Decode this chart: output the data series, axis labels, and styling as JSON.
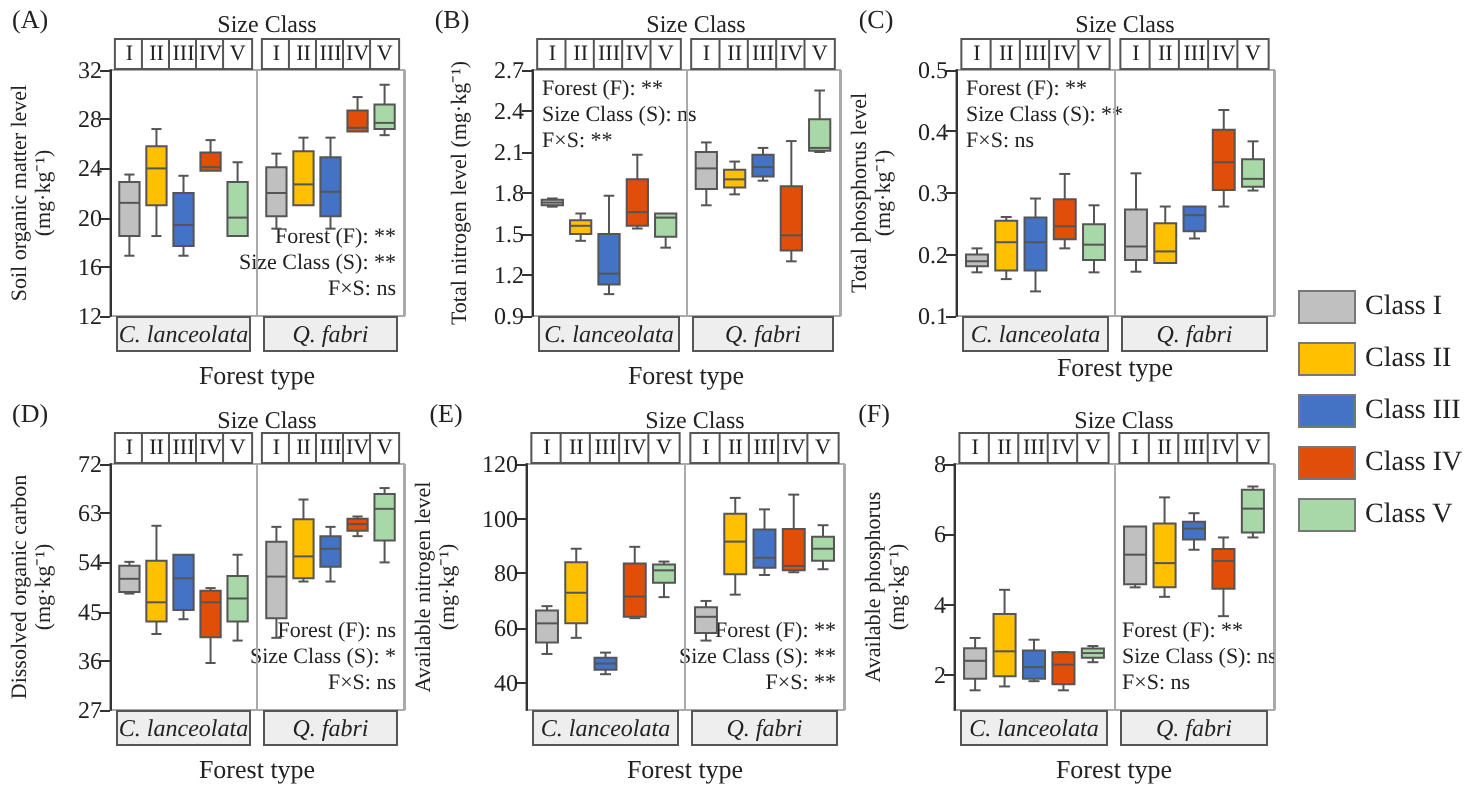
{
  "chart_data": [
    {
      "type": "box",
      "title": "Size Class",
      "xlabel": "Forest type",
      "ylabel": "Soil organic matter level\n(mg·kg⁻¹)",
      "categories": [
        "C. lanceolata",
        "Q. fabri"
      ],
      "ylim": [
        12,
        32
      ],
      "yticks": [
        12,
        16,
        20,
        24,
        28,
        32
      ],
      "annotations": [
        "(A)",
        "I",
        "II",
        "III",
        "IV",
        "V",
        "I",
        "II",
        "III",
        "IV",
        "V",
        "Forest (F): **",
        "Size Class (S): **",
        "F×S: ns"
      ],
      "series": [
        {
          "color": "#c0c0c0",
          "boxes": [
            {
              "low": 16.9,
              "q1": 18.5,
              "median": 21.2,
              "q3": 22.9,
              "high": 23.5
            },
            {
              "low": 19.1,
              "q1": 20.1,
              "median": 22.0,
              "q3": 24.1,
              "high": 25.2
            }
          ]
        },
        {
          "color": "#ffc000",
          "boxes": [
            {
              "low": 18.5,
              "q1": 21.0,
              "median": 24.0,
              "q3": 25.8,
              "high": 27.2
            },
            {
              "low": 21.0,
              "q1": 21.0,
              "median": 22.7,
              "q3": 25.4,
              "high": 26.5
            }
          ]
        },
        {
          "color": "#4472c4",
          "boxes": [
            {
              "low": 16.9,
              "q1": 17.7,
              "median": 19.4,
              "q3": 22.0,
              "high": 23.4
            },
            {
              "low": 19.1,
              "q1": 20.1,
              "median": 22.1,
              "q3": 24.9,
              "high": 26.5
            }
          ]
        },
        {
          "color": "#e04e0a",
          "boxes": [
            {
              "low": 23.8,
              "q1": 23.8,
              "median": 24.1,
              "q3": 25.3,
              "high": 26.3
            },
            {
              "low": 27.0,
              "q1": 27.0,
              "median": 27.3,
              "q3": 28.7,
              "high": 29.8
            }
          ]
        },
        {
          "color": "#a9d8a8",
          "boxes": [
            {
              "low": 18.5,
              "q1": 18.5,
              "median": 20.0,
              "q3": 22.9,
              "high": 24.5
            },
            {
              "low": 26.7,
              "q1": 27.2,
              "median": 27.7,
              "q3": 29.2,
              "high": 30.8
            }
          ]
        }
      ]
    },
    {
      "type": "box",
      "title": "Size Class",
      "xlabel": "Forest type",
      "ylabel": "Total nitrogen level (mg·kg⁻¹)",
      "categories": [
        "C. lanceolata",
        "Q. fabri"
      ],
      "ylim": [
        0.9,
        2.7
      ],
      "yticks": [
        0.9,
        1.2,
        1.5,
        1.8,
        2.1,
        2.4,
        2.7
      ],
      "annotations": [
        "(B)",
        "I",
        "II",
        "III",
        "IV",
        "V",
        "I",
        "II",
        "III",
        "IV",
        "V",
        "Forest (F): **",
        "Size Class (S): ns",
        "F×S: **"
      ],
      "series": [
        {
          "color": "#c0c0c0",
          "boxes": [
            {
              "low": 1.7,
              "q1": 1.71,
              "median": 1.73,
              "q3": 1.75,
              "high": 1.76
            },
            {
              "low": 1.71,
              "q1": 1.83,
              "median": 1.98,
              "q3": 2.1,
              "high": 2.17
            }
          ]
        },
        {
          "color": "#ffc000",
          "boxes": [
            {
              "low": 1.45,
              "q1": 1.5,
              "median": 1.56,
              "q3": 1.6,
              "high": 1.65
            },
            {
              "low": 1.79,
              "q1": 1.84,
              "median": 1.9,
              "q3": 1.97,
              "high": 2.03
            }
          ]
        },
        {
          "color": "#4472c4",
          "boxes": [
            {
              "low": 1.06,
              "q1": 1.13,
              "median": 1.21,
              "q3": 1.5,
              "high": 1.78
            },
            {
              "low": 1.89,
              "q1": 1.92,
              "median": 1.99,
              "q3": 2.08,
              "high": 2.13
            }
          ]
        },
        {
          "color": "#e04e0a",
          "boxes": [
            {
              "low": 1.54,
              "q1": 1.56,
              "median": 1.66,
              "q3": 1.9,
              "high": 2.08
            },
            {
              "low": 1.3,
              "q1": 1.38,
              "median": 1.49,
              "q3": 1.85,
              "high": 2.18
            }
          ]
        },
        {
          "color": "#a9d8a8",
          "boxes": [
            {
              "low": 1.4,
              "q1": 1.48,
              "median": 1.62,
              "q3": 1.65,
              "high": 1.65
            },
            {
              "low": 2.1,
              "q1": 2.11,
              "median": 2.13,
              "q3": 2.34,
              "high": 2.55
            }
          ]
        }
      ]
    },
    {
      "type": "box",
      "title": "Size Class",
      "xlabel": "Forest type",
      "ylabel": "Total phosphorus level\n(mg·kg⁻¹)",
      "categories": [
        "C. lanceolata",
        "Q. fabri"
      ],
      "ylim": [
        0.1,
        0.5
      ],
      "yticks": [
        0.1,
        0.2,
        0.3,
        0.4,
        0.5
      ],
      "legend": "right",
      "annotations": [
        "(C)",
        "I",
        "II",
        "III",
        "IV",
        "V",
        "I",
        "II",
        "III",
        "IV",
        "V",
        "Forest (F): **",
        "Size Class (S): **",
        "F×S: ns"
      ],
      "series": [
        {
          "name": "Class I",
          "color": "#c0c0c0",
          "boxes": [
            {
              "low": 0.171,
              "q1": 0.181,
              "median": 0.189,
              "q3": 0.2,
              "high": 0.21
            },
            {
              "low": 0.172,
              "q1": 0.191,
              "median": 0.213,
              "q3": 0.273,
              "high": 0.332
            }
          ]
        },
        {
          "name": "Class II",
          "color": "#ffc000",
          "boxes": [
            {
              "low": 0.16,
              "q1": 0.174,
              "median": 0.22,
              "q3": 0.255,
              "high": 0.261
            },
            {
              "low": 0.186,
              "q1": 0.186,
              "median": 0.205,
              "q3": 0.251,
              "high": 0.278
            }
          ]
        },
        {
          "name": "Class III",
          "color": "#4472c4",
          "boxes": [
            {
              "low": 0.14,
              "q1": 0.174,
              "median": 0.22,
              "q3": 0.26,
              "high": 0.291
            },
            {
              "low": 0.226,
              "q1": 0.238,
              "median": 0.264,
              "q3": 0.278,
              "high": 0.278
            }
          ]
        },
        {
          "name": "Class IV",
          "color": "#e04e0a",
          "boxes": [
            {
              "low": 0.21,
              "q1": 0.225,
              "median": 0.246,
              "q3": 0.29,
              "high": 0.331
            },
            {
              "low": 0.278,
              "q1": 0.305,
              "median": 0.35,
              "q3": 0.403,
              "high": 0.435
            }
          ]
        },
        {
          "name": "Class V",
          "color": "#a9d8a8",
          "boxes": [
            {
              "low": 0.171,
              "q1": 0.191,
              "median": 0.216,
              "q3": 0.249,
              "high": 0.28
            },
            {
              "low": 0.304,
              "q1": 0.31,
              "median": 0.323,
              "q3": 0.355,
              "high": 0.384
            }
          ]
        }
      ]
    },
    {
      "type": "box",
      "title": "Size Class",
      "xlabel": "Forest type",
      "ylabel": "Dissolved organic carbon\n(mg·kg⁻¹)",
      "categories": [
        "C. lanceolata",
        "Q. fabri"
      ],
      "ylim": [
        27,
        72
      ],
      "yticks": [
        27,
        36,
        45,
        54,
        63,
        72
      ],
      "annotations": [
        "(D)",
        "I",
        "II",
        "III",
        "IV",
        "V",
        "I",
        "II",
        "III",
        "IV",
        "V",
        "Forest (F): ns",
        "Size Class (S): *",
        "F×S: ns"
      ],
      "series": [
        {
          "color": "#c0c0c0",
          "boxes": [
            {
              "low": 48.3,
              "q1": 48.6,
              "median": 51.0,
              "q3": 53.4,
              "high": 54.1
            },
            {
              "low": 40.2,
              "q1": 43.8,
              "median": 51.4,
              "q3": 57.8,
              "high": 60.5
            }
          ]
        },
        {
          "color": "#ffc000",
          "boxes": [
            {
              "low": 40.9,
              "q1": 43.2,
              "median": 46.7,
              "q3": 54.3,
              "high": 60.7
            },
            {
              "low": 50.5,
              "q1": 51.1,
              "median": 55.1,
              "q3": 61.9,
              "high": 65.5
            }
          ]
        },
        {
          "color": "#4472c4",
          "boxes": [
            {
              "low": 43.6,
              "q1": 45.3,
              "median": 51.1,
              "q3": 55.4,
              "high": 55.4
            },
            {
              "low": 50.5,
              "q1": 53.2,
              "median": 56.5,
              "q3": 58.8,
              "high": 60.5
            }
          ]
        },
        {
          "color": "#e04e0a",
          "boxes": [
            {
              "low": 35.6,
              "q1": 40.3,
              "median": 46.7,
              "q3": 48.8,
              "high": 49.3
            },
            {
              "low": 58.8,
              "q1": 59.8,
              "median": 61.0,
              "q3": 62.0,
              "high": 62.4
            }
          ]
        },
        {
          "color": "#a9d8a8",
          "boxes": [
            {
              "low": 39.7,
              "q1": 43.2,
              "median": 47.4,
              "q3": 51.5,
              "high": 55.4
            },
            {
              "low": 54.0,
              "q1": 58.0,
              "median": 63.8,
              "q3": 66.5,
              "high": 67.6
            }
          ]
        }
      ]
    },
    {
      "type": "box",
      "title": "Size Class",
      "xlabel": "Forest type",
      "ylabel": "Available nitrogen level\n(mg·kg⁻¹)",
      "categories": [
        "C. lanceolata",
        "Q. fabri"
      ],
      "ylim": [
        30,
        120
      ],
      "yticks": [
        40,
        60,
        80,
        100,
        120
      ],
      "annotations": [
        "(E)",
        "I",
        "II",
        "III",
        "IV",
        "V",
        "I",
        "II",
        "III",
        "IV",
        "V",
        "Forest (F): **",
        "Size Class (S): **",
        "F×S: **"
      ],
      "series": [
        {
          "color": "#c0c0c0",
          "boxes": [
            {
              "low": 50.5,
              "q1": 54.7,
              "median": 61.7,
              "q3": 66.4,
              "high": 68.0
            },
            {
              "low": 55.4,
              "q1": 58.2,
              "median": 64.1,
              "q3": 67.6,
              "high": 69.9
            }
          ]
        },
        {
          "color": "#ffc000",
          "boxes": [
            {
              "low": 56.4,
              "q1": 61.7,
              "median": 72.9,
              "q3": 84.1,
              "high": 89.0
            },
            {
              "low": 72.2,
              "q1": 79.7,
              "median": 91.6,
              "q3": 101.8,
              "high": 107.6
            }
          ]
        },
        {
          "color": "#4472c4",
          "boxes": [
            {
              "low": 43.1,
              "q1": 44.7,
              "median": 47.0,
              "q3": 49.1,
              "high": 51.0
            },
            {
              "low": 79.4,
              "q1": 82.0,
              "median": 85.7,
              "q3": 96.0,
              "high": 103.4
            }
          ]
        },
        {
          "color": "#e04e0a",
          "boxes": [
            {
              "low": 63.6,
              "q1": 64.1,
              "median": 71.5,
              "q3": 83.6,
              "high": 89.7
            },
            {
              "low": 80.4,
              "q1": 81.1,
              "median": 82.7,
              "q3": 96.2,
              "high": 108.8
            }
          ]
        },
        {
          "color": "#a9d8a8",
          "boxes": [
            {
              "low": 71.3,
              "q1": 76.6,
              "median": 81.1,
              "q3": 83.2,
              "high": 84.3
            },
            {
              "low": 81.5,
              "q1": 84.6,
              "median": 89.0,
              "q3": 93.4,
              "high": 97.6
            }
          ]
        }
      ]
    },
    {
      "type": "box",
      "title": "Size Class",
      "xlabel": "Forest type",
      "ylabel": "Available phosphorus\n(mg·kg⁻¹)",
      "categories": [
        "C. lanceolata",
        "Q. fabri"
      ],
      "ylim": [
        1,
        8
      ],
      "yticks": [
        2,
        4,
        6,
        8
      ],
      "annotations": [
        "(F)",
        "I",
        "II",
        "III",
        "IV",
        "V",
        "I",
        "II",
        "III",
        "IV",
        "V",
        "Forest (F): **",
        "Size Class (S): ns",
        "F×S: ns"
      ],
      "series": [
        {
          "color": "#c0c0c0",
          "boxes": [
            {
              "low": 1.56,
              "q1": 1.89,
              "median": 2.4,
              "q3": 2.76,
              "high": 3.05
            },
            {
              "low": 4.49,
              "q1": 4.58,
              "median": 5.42,
              "q3": 6.22,
              "high": 6.22
            }
          ]
        },
        {
          "color": "#ffc000",
          "boxes": [
            {
              "low": 1.67,
              "q1": 1.96,
              "median": 2.67,
              "q3": 3.73,
              "high": 4.42
            },
            {
              "low": 4.22,
              "q1": 4.49,
              "median": 5.18,
              "q3": 6.31,
              "high": 7.05
            }
          ]
        },
        {
          "color": "#4472c4",
          "boxes": [
            {
              "low": 1.82,
              "q1": 1.89,
              "median": 2.22,
              "q3": 2.69,
              "high": 3.0
            },
            {
              "low": 5.56,
              "q1": 5.85,
              "median": 6.16,
              "q3": 6.36,
              "high": 6.6
            }
          ]
        },
        {
          "color": "#e04e0a",
          "boxes": [
            {
              "low": 1.56,
              "q1": 1.73,
              "median": 2.29,
              "q3": 2.64,
              "high": 2.65
            },
            {
              "low": 3.67,
              "q1": 4.45,
              "median": 5.24,
              "q3": 5.58,
              "high": 5.91
            }
          ]
        },
        {
          "color": "#a9d8a8",
          "boxes": [
            {
              "low": 2.36,
              "q1": 2.49,
              "median": 2.62,
              "q3": 2.75,
              "high": 2.82
            },
            {
              "low": 5.91,
              "q1": 6.05,
              "median": 6.73,
              "q3": 7.27,
              "high": 7.36
            }
          ]
        }
      ]
    }
  ]
}
